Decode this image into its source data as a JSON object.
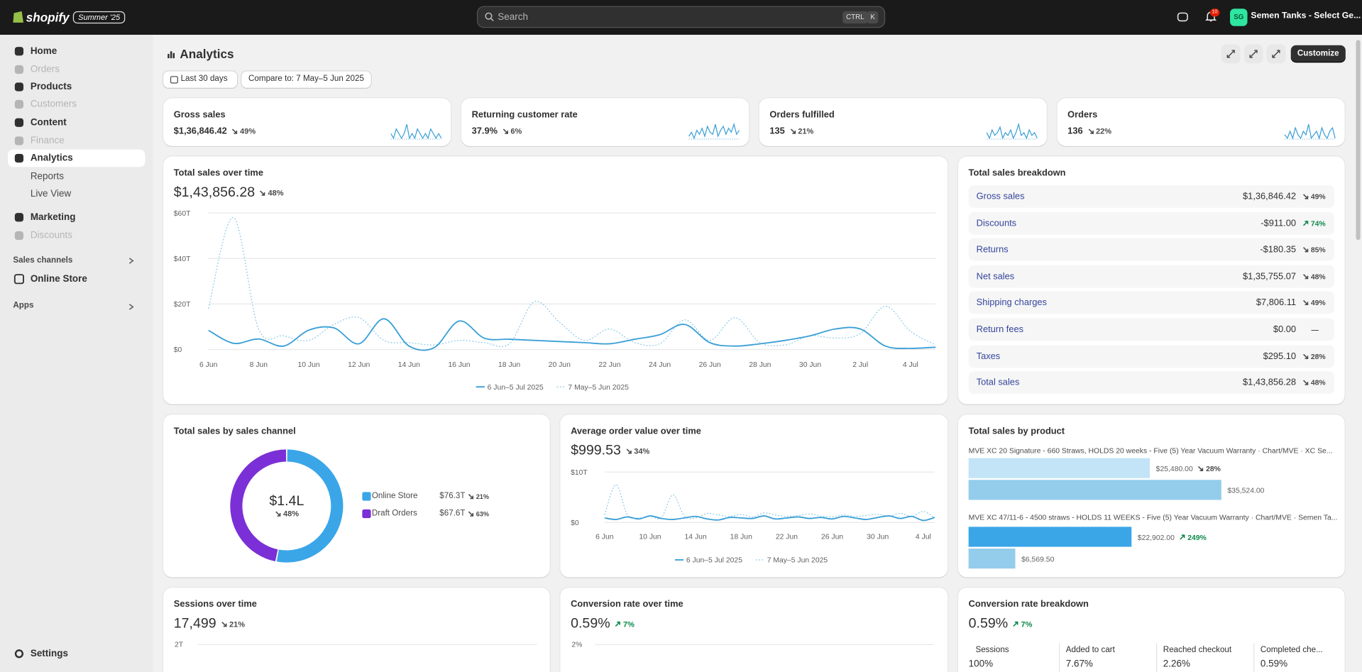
{
  "topbar": {
    "brand": "shopify",
    "badge": "Summer '25",
    "search": "Search",
    "shortcut": [
      "CTRL",
      "K"
    ],
    "notifications": "10",
    "avatar": "SG",
    "store": "Semen Tanks - Select Ge..."
  },
  "sidebar": {
    "items": [
      {
        "label": "Home"
      },
      {
        "label": "Orders",
        "muted": true
      },
      {
        "label": "Products"
      },
      {
        "label": "Customers",
        "muted": true
      },
      {
        "label": "Content"
      },
      {
        "label": "Finance",
        "muted": true
      },
      {
        "label": "Analytics",
        "selected": true
      },
      {
        "label": "Reports",
        "sub": true
      },
      {
        "label": "Live View",
        "sub": true
      },
      {
        "label": "Marketing"
      },
      {
        "label": "Discounts",
        "muted": true
      }
    ],
    "sales_channels": "Sales channels",
    "channels": [
      "Online Store"
    ],
    "apps": "Apps",
    "settings": "Settings"
  },
  "page": {
    "title": "Analytics",
    "date_range": "Last 30 days",
    "compare": "Compare to: 7 May–5 Jun 2025",
    "customize": "Customize"
  },
  "kpis": [
    {
      "label": "Gross sales",
      "value": "$1,36,846.42",
      "change": "49%",
      "trend": "down",
      "spark": [
        3,
        2,
        4,
        3,
        2,
        3,
        5,
        2,
        3,
        2,
        4,
        3,
        2,
        3,
        2,
        4,
        3,
        2,
        3,
        2
      ]
    },
    {
      "label": "Returning customer rate",
      "value": "37.9%",
      "change": "6%",
      "trend": "down",
      "spark": [
        4,
        6,
        3,
        7,
        5,
        8,
        4,
        9,
        6,
        5,
        10,
        4,
        7,
        9,
        5,
        8,
        6,
        10,
        5,
        7
      ]
    },
    {
      "label": "Orders fulfilled",
      "value": "135",
      "change": "21%",
      "trend": "down",
      "spark": [
        5,
        3,
        6,
        4,
        5,
        7,
        3,
        5,
        4,
        6,
        3,
        5,
        8,
        4,
        5,
        3,
        6,
        4,
        5,
        3
      ]
    },
    {
      "label": "Orders",
      "value": "136",
      "change": "22%",
      "trend": "down",
      "spark": [
        4,
        3,
        5,
        3,
        6,
        4,
        3,
        5,
        4,
        7,
        3,
        4,
        5,
        3,
        6,
        4,
        3,
        5,
        6,
        3
      ]
    }
  ],
  "breakdown": {
    "title": "Total sales breakdown",
    "rows": [
      {
        "label": "Gross sales",
        "value": "$1,36,846.42",
        "change": "49%",
        "trend": "down"
      },
      {
        "label": "Discounts",
        "value": "-$911.00",
        "change": "74%",
        "trend": "up"
      },
      {
        "label": "Returns",
        "value": "-$180.35",
        "change": "85%",
        "trend": "down"
      },
      {
        "label": "Net sales",
        "value": "$1,35,755.07",
        "change": "48%",
        "trend": "down"
      },
      {
        "label": "Shipping charges",
        "value": "$7,806.11",
        "change": "49%",
        "trend": "down"
      },
      {
        "label": "Return fees",
        "value": "$0.00",
        "change": "—"
      },
      {
        "label": "Taxes",
        "value": "$295.10",
        "change": "28%",
        "trend": "down"
      },
      {
        "label": "Total sales",
        "value": "$1,43,856.28",
        "change": "48%",
        "trend": "down"
      }
    ]
  },
  "cards": [
    {
      "title": "Sessions over time",
      "value": "17,499",
      "change": "21%",
      "trend": "down",
      "axis_top": "2T"
    },
    {
      "title": "Conversion rate over time",
      "value": "0.59%",
      "change": "7%",
      "trend": "up",
      "axis_top": "2%"
    }
  ],
  "conversion_breakdown": {
    "title": "Conversion rate breakdown",
    "value": "0.59%",
    "change": "7%",
    "trend": "up",
    "steps": [
      {
        "label": "Sessions",
        "value": "100%"
      },
      {
        "label": "Added to cart",
        "value": "7.67%"
      },
      {
        "label": "Reached checkout",
        "value": "2.26%"
      },
      {
        "label": "Completed che...",
        "value": "0.59%"
      }
    ]
  },
  "chart_data": [
    {
      "type": "line",
      "title": "Total sales over time",
      "value": "$1,43,856.28",
      "change": "48%",
      "trend": "down",
      "categories": [
        "6 Jun",
        null,
        "8 Jun",
        null,
        "10 Jun",
        null,
        "12 Jun",
        null,
        "14 Jun",
        null,
        "16 Jun",
        null,
        "18 Jun",
        null,
        "20 Jun",
        null,
        "22 Jun",
        null,
        "24 Jun",
        null,
        "26 Jun",
        null,
        "28 Jun",
        null,
        "30 Jun",
        null,
        "2 Jul",
        null,
        "4 Jul",
        null
      ],
      "ylim": [
        0,
        60000
      ],
      "yticks": [
        {
          "value": 0,
          "label": "$0"
        },
        {
          "value": 20000,
          "label": "$20T"
        },
        {
          "value": 40000,
          "label": "$40T"
        },
        {
          "value": 60000,
          "label": "$60T"
        }
      ],
      "grid": true,
      "series": [
        {
          "name": "6 Jun–5 Jul 2025",
          "color": "#3a9fd6",
          "style": "solid",
          "values": [
            8400,
            2700,
            4600,
            1500,
            8500,
            9500,
            2500,
            13500,
            1500,
            800,
            12500,
            5000,
            4500,
            4000,
            3500,
            3000,
            2500,
            4500,
            6500,
            11000,
            3000,
            1500,
            2500,
            4000,
            6000,
            9000,
            9000,
            1500,
            500,
            1000
          ]
        },
        {
          "name": "7 May–5 Jun 2025",
          "color": "#86c7e6",
          "style": "dotted",
          "values": [
            18000,
            58000,
            9000,
            6000,
            4000,
            11000,
            14000,
            4000,
            3000,
            2000,
            4000,
            3000,
            2500,
            21000,
            12000,
            4000,
            9000,
            3000,
            2500,
            13000,
            4000,
            14000,
            3000,
            2000,
            6000,
            5000,
            7000,
            19000,
            8000,
            2000
          ]
        }
      ]
    },
    {
      "type": "line",
      "title": "Average order value over time",
      "value": "$999.53",
      "change": "34%",
      "trend": "down",
      "categories": [
        "6 Jun",
        null,
        null,
        null,
        "10 Jun",
        null,
        null,
        null,
        "14 Jun",
        null,
        null,
        null,
        "18 Jun",
        null,
        null,
        null,
        "22 Jun",
        null,
        null,
        null,
        "26 Jun",
        null,
        null,
        null,
        "30 Jun",
        null,
        null,
        null,
        "4 Jul",
        null
      ],
      "ylim": [
        0,
        10000
      ],
      "yticks": [
        {
          "value": 0,
          "label": "$0"
        },
        {
          "value": 10000,
          "label": "$10T"
        }
      ],
      "grid": true,
      "series": [
        {
          "name": "6 Jun–5 Jul 2025",
          "color": "#3a9fd6",
          "style": "solid",
          "values": [
            900,
            600,
            1100,
            700,
            1300,
            800,
            600,
            900,
            1200,
            700,
            500,
            1000,
            900,
            800,
            1300,
            700,
            900,
            1100,
            800,
            1000,
            700,
            1200,
            900,
            600,
            1000,
            1300,
            800,
            1200,
            400,
            1000
          ]
        },
        {
          "name": "7 May–5 Jun 2025",
          "color": "#86c7e6",
          "style": "dotted",
          "values": [
            1500,
            7500,
            1500,
            900,
            1200,
            1000,
            5500,
            1300,
            900,
            1800,
            1500,
            1200,
            1600,
            1100,
            1900,
            1500,
            1200,
            1400,
            1700,
            1300,
            1100,
            1500,
            1200,
            1400,
            1600,
            1300,
            1800,
            1200,
            2200,
            900
          ]
        }
      ]
    },
    {
      "type": "donut",
      "title": "Total sales by sales channel",
      "center_value": "$1.4L",
      "change": "48%",
      "trend": "down",
      "categories": [
        "Online Store",
        "Draft Orders"
      ],
      "values": [
        76300,
        67600
      ],
      "value_labels": [
        "$76.3T",
        "$67.6T"
      ],
      "changes": [
        "21%",
        "63%"
      ],
      "trends": [
        "down",
        "down"
      ],
      "colors": [
        "#3aa6e8",
        "#7b2fd6"
      ]
    },
    {
      "type": "hbar",
      "title": "Total sales by product",
      "categories": [
        "MVE XC 20 Signature - 660 Straws, HOLDS 20 weeks - Five (5) Year Vacuum Warranty · Chart/MVE · XC Se...",
        "MVE XC 47/11-6 - 4500 straws - HOLDS 11 WEEKS - Five (5) Year Vacuum Warranty · Chart/MVE · Semen Ta..."
      ],
      "series": [
        {
          "colors": [
            "#c3e4f7",
            "#3aa6e8"
          ],
          "values": [
            25480,
            22902
          ],
          "value_labels": [
            "$25,480.00",
            "$22,902.00"
          ],
          "changes": [
            "28%",
            "249%"
          ],
          "trends": [
            "down",
            "up"
          ]
        },
        {
          "colors": [
            "#94ccec",
            "#94ccec"
          ],
          "values": [
            35524,
            6569.5
          ],
          "value_labels": [
            "$35,524.00",
            "$6,569.50"
          ]
        }
      ]
    }
  ]
}
